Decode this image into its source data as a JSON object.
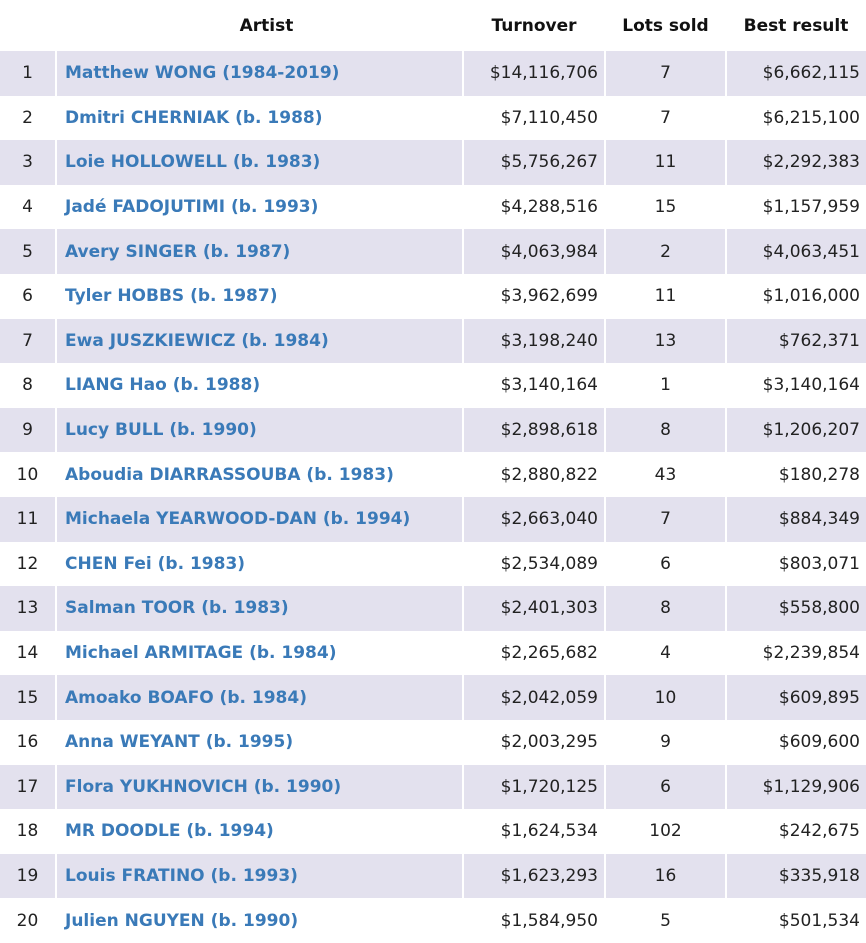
{
  "headers": {
    "rank": "",
    "artist": "Artist",
    "turnover": "Turnover",
    "lots": "Lots sold",
    "best": "Best result"
  },
  "colors": {
    "stripe": "#e3e1ee",
    "link": "#3a7ab8"
  },
  "rows": [
    {
      "rank": "1",
      "artist": "Matthew WONG (1984-2019)",
      "turnover": "$14,116,706",
      "lots": "7",
      "best": "$6,662,115"
    },
    {
      "rank": "2",
      "artist": "Dmitri CHERNIAK (b. 1988)",
      "turnover": "$7,110,450",
      "lots": "7",
      "best": "$6,215,100"
    },
    {
      "rank": "3",
      "artist": "Loie HOLLOWELL (b. 1983)",
      "turnover": "$5,756,267",
      "lots": "11",
      "best": "$2,292,383"
    },
    {
      "rank": "4",
      "artist": "Jadé FADOJUTIMI (b. 1993)",
      "turnover": "$4,288,516",
      "lots": "15",
      "best": "$1,157,959"
    },
    {
      "rank": "5",
      "artist": "Avery SINGER (b. 1987)",
      "turnover": "$4,063,984",
      "lots": "2",
      "best": "$4,063,451"
    },
    {
      "rank": "6",
      "artist": "Tyler HOBBS (b. 1987)",
      "turnover": "$3,962,699",
      "lots": "11",
      "best": "$1,016,000"
    },
    {
      "rank": "7",
      "artist": "Ewa JUSZKIEWICZ (b. 1984)",
      "turnover": "$3,198,240",
      "lots": "13",
      "best": "$762,371"
    },
    {
      "rank": "8",
      "artist": "LIANG Hao (b. 1988)",
      "turnover": "$3,140,164",
      "lots": "1",
      "best": "$3,140,164"
    },
    {
      "rank": "9",
      "artist": "Lucy BULL (b. 1990)",
      "turnover": "$2,898,618",
      "lots": "8",
      "best": "$1,206,207"
    },
    {
      "rank": "10",
      "artist": "Aboudia DIARRASSOUBA (b. 1983)",
      "turnover": "$2,880,822",
      "lots": "43",
      "best": "$180,278"
    },
    {
      "rank": "11",
      "artist": "Michaela YEARWOOD-DAN (b. 1994)",
      "turnover": "$2,663,040",
      "lots": "7",
      "best": "$884,349"
    },
    {
      "rank": "12",
      "artist": "CHEN Fei (b. 1983)",
      "turnover": "$2,534,089",
      "lots": "6",
      "best": "$803,071"
    },
    {
      "rank": "13",
      "artist": "Salman TOOR (b. 1983)",
      "turnover": "$2,401,303",
      "lots": "8",
      "best": "$558,800"
    },
    {
      "rank": "14",
      "artist": "Michael ARMITAGE (b. 1984)",
      "turnover": "$2,265,682",
      "lots": "4",
      "best": "$2,239,854"
    },
    {
      "rank": "15",
      "artist": "Amoako BOAFO (b. 1984)",
      "turnover": "$2,042,059",
      "lots": "10",
      "best": "$609,895"
    },
    {
      "rank": "16",
      "artist": "Anna WEYANT (b. 1995)",
      "turnover": "$2,003,295",
      "lots": "9",
      "best": "$609,600"
    },
    {
      "rank": "17",
      "artist": "Flora YUKHNOVICH (b. 1990)",
      "turnover": "$1,720,125",
      "lots": "6",
      "best": "$1,129,906"
    },
    {
      "rank": "18",
      "artist": "MR DOODLE (b. 1994)",
      "turnover": "$1,624,534",
      "lots": "102",
      "best": "$242,675"
    },
    {
      "rank": "19",
      "artist": "Louis FRATINO (b. 1993)",
      "turnover": "$1,623,293",
      "lots": "16",
      "best": "$335,918"
    },
    {
      "rank": "20",
      "artist": "Julien NGUYEN (b. 1990)",
      "turnover": "$1,584,950",
      "lots": "5",
      "best": "$501,534"
    }
  ]
}
